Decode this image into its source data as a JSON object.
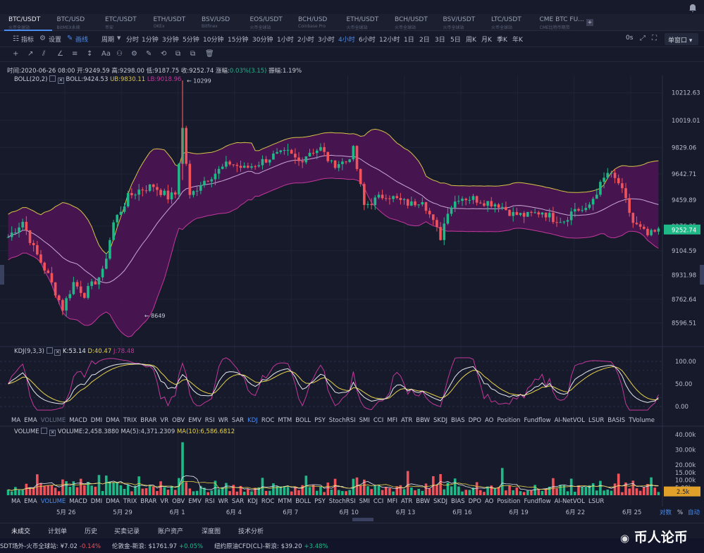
{
  "tabs": [
    {
      "pair": "BTC/USDT",
      "ex": "火币全球站",
      "active": true
    },
    {
      "pair": "BTC/USD",
      "ex": "BitMEX永续"
    },
    {
      "pair": "ETC/USDT",
      "ex": "币安"
    },
    {
      "pair": "ETH/USDT",
      "ex": "OKEx"
    },
    {
      "pair": "BSV/USD",
      "ex": "Bitfinex"
    },
    {
      "pair": "EOS/USDT",
      "ex": "火币全球站"
    },
    {
      "pair": "BCH/USD",
      "ex": "Coinbase Pro"
    },
    {
      "pair": "ETH/USDT",
      "ex": "火币全球站"
    },
    {
      "pair": "BCH/USDT",
      "ex": "火币全球站"
    },
    {
      "pair": "BSV/USDT",
      "ex": "火币全球站"
    },
    {
      "pair": "LTC/USDT",
      "ex": "火币全球站"
    },
    {
      "pair": "CME BTC FU...",
      "ex": "CME比特币期货"
    }
  ],
  "toolbar": {
    "indicator": "指标",
    "settings": "设置",
    "draw": "画线",
    "period": "周期",
    "intervals": [
      "分时",
      "1分钟",
      "3分钟",
      "5分钟",
      "10分钟",
      "15分钟",
      "30分钟",
      "1小时",
      "2小时",
      "3小时",
      "4小时",
      "6小时",
      "12小时",
      "1日",
      "2日",
      "3日",
      "5日",
      "周K",
      "月K",
      "季K",
      "年K"
    ],
    "active_interval": "4小时",
    "countdown": "0s",
    "window": "单窗口"
  },
  "drawtools": [
    "+",
    "↗",
    "⫽",
    "∠",
    "≡",
    "↕",
    "Aa",
    "⚇",
    "⚙",
    "✎",
    "⟲",
    "⧉",
    "⧉",
    "🗑"
  ],
  "info": {
    "time": "时间:2020-06-26 08:00",
    "open": "开:9249.59",
    "high": "高:9298.00",
    "low": "低:9187.75",
    "close": "收:9252.74",
    "chg_label": "涨幅:",
    "chg": "0.03%(3.15)",
    "amp": "振幅:1.19%"
  },
  "boll": {
    "label": "BOLL(20,2)",
    "mid": "BOLL:9424.53",
    "ub": "UB:9830.11",
    "lb": "LB:9018.96"
  },
  "price_axis": [
    "10212.63",
    "10019.01",
    "9829.06",
    "9642.71",
    "9459.89",
    "9276.35",
    "9104.59",
    "8931.98",
    "8762.64",
    "8596.51"
  ],
  "current_price": "9252.74",
  "high_mark": "10299",
  "low_mark": "8649",
  "kdj": {
    "label": "KDJ(9,3,3)",
    "k": "K:53.14",
    "d": "D:40.47",
    "j": "J:78.48",
    "axis": [
      "100.00",
      "50.00",
      "0.00"
    ]
  },
  "indicator_bar": [
    "MA",
    "EMA",
    "VOLUME",
    "MACD",
    "DMI",
    "DMA",
    "TRIX",
    "BRAR",
    "VR",
    "OBV",
    "EMV",
    "RSI",
    "WR",
    "SAR",
    "KDJ",
    "ROC",
    "MTM",
    "BOLL",
    "PSY",
    "StochRSI",
    "SMI",
    "CCI",
    "MFI",
    "ATR",
    "BBW",
    "SKDJ",
    "BIAS",
    "DPO",
    "AO",
    "Position",
    "Fundflow",
    "AI-NetVOL",
    "LSUR",
    "BASIS",
    "TVolume"
  ],
  "indicator_bar2": [
    "MA",
    "EMA",
    "VOLUME",
    "MACD",
    "DMI",
    "DMA",
    "TRIX",
    "BRAR",
    "VR",
    "OBV",
    "EMV",
    "RSI",
    "WR",
    "SAR",
    "KDJ",
    "ROC",
    "MTM",
    "BOLL",
    "PSY",
    "StochRSI",
    "SMI",
    "CCI",
    "MFI",
    "ATR",
    "BBW",
    "SKDJ",
    "BIAS",
    "DPO",
    "AO",
    "Position",
    "Fundflow",
    "AI-NetVOL",
    "LSUR"
  ],
  "volume": {
    "label": "VOLUME",
    "vol": "VOLUME:2,458.3880",
    "ma5": "MA(5):4,371.2309",
    "ma10": "MA(10):6,586.6812",
    "axis": [
      "40.00k",
      "30.00k",
      "20.00k",
      "15.00k",
      "10.00k",
      "5.00k"
    ],
    "current": "2.5k"
  },
  "dates": [
    "5月 26",
    "5月 29",
    "6月 1",
    "6月 4",
    "6月 7",
    "6月 10",
    "6月 13",
    "6月 16",
    "6月 19",
    "6月 22",
    "6月 25"
  ],
  "scale_opts": [
    "对数",
    "%",
    "自动"
  ],
  "bottom_tabs": [
    "未成交",
    "计划单",
    "历史",
    "买卖记录",
    "账户资产",
    "深度图",
    "技术分析"
  ],
  "ticker": [
    {
      "name": "SDT场外-火币全球站:",
      "price": "¥7.02",
      "chg": "-0.14%",
      "dir": "dn"
    },
    {
      "name": "伦敦金-新浪:",
      "price": "$1761.97",
      "chg": "+0.05%",
      "dir": "up"
    },
    {
      "name": "纽约原油CFD(CL)-新浪:",
      "price": "$39.20",
      "chg": "+3.48%",
      "dir": "up"
    }
  ],
  "watermark": "币人论币",
  "colors": {
    "bg": "#161a2b",
    "up": "#1fb987",
    "down": "#f05359",
    "band": "#4b1552",
    "ub": "#d9c24a",
    "lb": "#c2389b",
    "mid": "#c9a7d6",
    "accent": "#4b8cf0"
  }
}
